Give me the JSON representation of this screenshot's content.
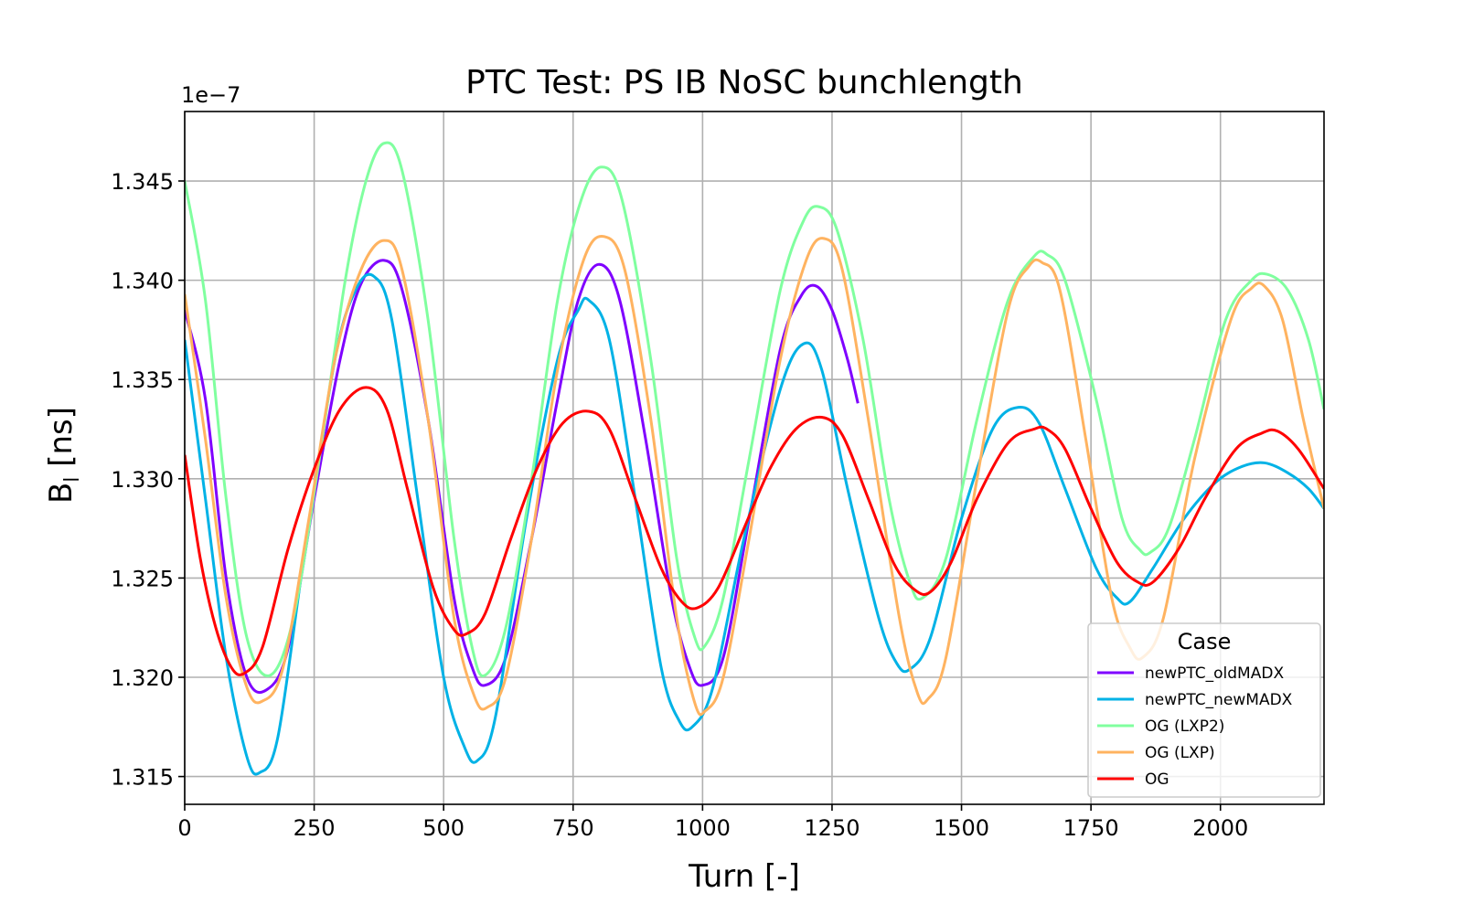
{
  "chart_data": {
    "type": "line",
    "title": "PTC Test: PS IB NoSC bunchlength",
    "xlabel": "Turn [-]",
    "ylabel": "B",
    "ylabel_subscript": "l",
    "ylabel_unit": " [ns]",
    "y_offset_text": "1e−7",
    "xlim": [
      0,
      2200
    ],
    "ylim": [
      1.3136,
      1.3485
    ],
    "x_ticks": [
      0,
      250,
      500,
      750,
      1000,
      1250,
      1500,
      1750,
      2000
    ],
    "x_tick_labels": [
      "0",
      "250",
      "500",
      "750",
      "1000",
      "1250",
      "1500",
      "1750",
      "2000"
    ],
    "y_ticks": [
      1.315,
      1.32,
      1.325,
      1.33,
      1.335,
      1.34,
      1.345
    ],
    "y_tick_labels": [
      "1.315",
      "1.320",
      "1.325",
      "1.330",
      "1.335",
      "1.340",
      "1.345"
    ],
    "grid": true,
    "legend": {
      "title": "Case",
      "placement": "lower-right"
    },
    "series": [
      {
        "name": "newPTC_oldMADX",
        "color": "#7f00ff",
        "points": [
          [
            0,
            1.3385
          ],
          [
            40,
            1.334
          ],
          [
            80,
            1.325
          ],
          [
            120,
            1.32
          ],
          [
            160,
            1.3194
          ],
          [
            200,
            1.3215
          ],
          [
            250,
            1.329
          ],
          [
            300,
            1.336
          ],
          [
            340,
            1.3398
          ],
          [
            385,
            1.341
          ],
          [
            420,
            1.3395
          ],
          [
            470,
            1.333
          ],
          [
            520,
            1.324
          ],
          [
            555,
            1.3205
          ],
          [
            580,
            1.3196
          ],
          [
            620,
            1.321
          ],
          [
            670,
            1.327
          ],
          [
            720,
            1.334
          ],
          [
            760,
            1.339
          ],
          [
            800,
            1.3408
          ],
          [
            840,
            1.339
          ],
          [
            890,
            1.332
          ],
          [
            940,
            1.324
          ],
          [
            975,
            1.3205
          ],
          [
            1000,
            1.3196
          ],
          [
            1040,
            1.321
          ],
          [
            1090,
            1.328
          ],
          [
            1150,
            1.3365
          ],
          [
            1190,
            1.3392
          ],
          [
            1220,
            1.3397
          ],
          [
            1250,
            1.3385
          ],
          [
            1280,
            1.336
          ],
          [
            1300,
            1.3338
          ]
        ]
      },
      {
        "name": "newPTC_newMADX",
        "color": "#00b2e6",
        "points": [
          [
            0,
            1.337
          ],
          [
            40,
            1.329
          ],
          [
            80,
            1.321
          ],
          [
            120,
            1.316
          ],
          [
            145,
            1.3152
          ],
          [
            180,
            1.317
          ],
          [
            230,
            1.326
          ],
          [
            290,
            1.336
          ],
          [
            330,
            1.3395
          ],
          [
            365,
            1.3402
          ],
          [
            400,
            1.338
          ],
          [
            450,
            1.329
          ],
          [
            500,
            1.32
          ],
          [
            540,
            1.3165
          ],
          [
            565,
            1.3158
          ],
          [
            600,
            1.318
          ],
          [
            660,
            1.328
          ],
          [
            720,
            1.336
          ],
          [
            760,
            1.3385
          ],
          [
            780,
            1.339
          ],
          [
            820,
            1.337
          ],
          [
            870,
            1.329
          ],
          [
            920,
            1.3205
          ],
          [
            955,
            1.3178
          ],
          [
            980,
            1.3175
          ],
          [
            1020,
            1.3195
          ],
          [
            1080,
            1.327
          ],
          [
            1150,
            1.3345
          ],
          [
            1195,
            1.3368
          ],
          [
            1230,
            1.3355
          ],
          [
            1280,
            1.3295
          ],
          [
            1340,
            1.323
          ],
          [
            1375,
            1.3207
          ],
          [
            1400,
            1.3204
          ],
          [
            1440,
            1.322
          ],
          [
            1500,
            1.328
          ],
          [
            1560,
            1.3325
          ],
          [
            1610,
            1.3336
          ],
          [
            1650,
            1.3328
          ],
          [
            1700,
            1.3295
          ],
          [
            1760,
            1.3255
          ],
          [
            1800,
            1.324
          ],
          [
            1825,
            1.3238
          ],
          [
            1870,
            1.3255
          ],
          [
            1930,
            1.328
          ],
          [
            1990,
            1.3298
          ],
          [
            2040,
            1.3306
          ],
          [
            2085,
            1.3308
          ],
          [
            2130,
            1.3303
          ],
          [
            2170,
            1.3295
          ],
          [
            2200,
            1.3285
          ]
        ]
      },
      {
        "name": "OG (LXP2)",
        "color": "#80ff9f",
        "points": [
          [
            0,
            1.345
          ],
          [
            40,
            1.339
          ],
          [
            80,
            1.329
          ],
          [
            120,
            1.322
          ],
          [
            165,
            1.3201
          ],
          [
            210,
            1.323
          ],
          [
            260,
            1.331
          ],
          [
            310,
            1.34
          ],
          [
            350,
            1.345
          ],
          [
            385,
            1.3469
          ],
          [
            420,
            1.3455
          ],
          [
            470,
            1.338
          ],
          [
            520,
            1.327
          ],
          [
            555,
            1.3215
          ],
          [
            580,
            1.3201
          ],
          [
            620,
            1.3225
          ],
          [
            670,
            1.33
          ],
          [
            720,
            1.339
          ],
          [
            765,
            1.344
          ],
          [
            805,
            1.3457
          ],
          [
            845,
            1.344
          ],
          [
            900,
            1.336
          ],
          [
            950,
            1.326
          ],
          [
            985,
            1.322
          ],
          [
            1005,
            1.3216
          ],
          [
            1040,
            1.324
          ],
          [
            1090,
            1.331
          ],
          [
            1150,
            1.3395
          ],
          [
            1195,
            1.343
          ],
          [
            1225,
            1.3437
          ],
          [
            1260,
            1.3425
          ],
          [
            1310,
            1.337
          ],
          [
            1360,
            1.329
          ],
          [
            1400,
            1.3248
          ],
          [
            1425,
            1.324
          ],
          [
            1470,
            1.326
          ],
          [
            1530,
            1.333
          ],
          [
            1590,
            1.339
          ],
          [
            1640,
            1.3412
          ],
          [
            1665,
            1.3413
          ],
          [
            1700,
            1.34
          ],
          [
            1760,
            1.334
          ],
          [
            1810,
            1.328
          ],
          [
            1845,
            1.3264
          ],
          [
            1865,
            1.3263
          ],
          [
            1900,
            1.3275
          ],
          [
            1950,
            1.332
          ],
          [
            2010,
            1.338
          ],
          [
            2060,
            1.34
          ],
          [
            2090,
            1.3403
          ],
          [
            2130,
            1.3395
          ],
          [
            2170,
            1.337
          ],
          [
            2200,
            1.3335
          ]
        ]
      },
      {
        "name": "OG (LXP)",
        "color": "#ffb360",
        "points": [
          [
            0,
            1.3393
          ],
          [
            40,
            1.332
          ],
          [
            80,
            1.324
          ],
          [
            120,
            1.3195
          ],
          [
            150,
            1.3188
          ],
          [
            190,
            1.3205
          ],
          [
            240,
            1.328
          ],
          [
            290,
            1.336
          ],
          [
            340,
            1.3405
          ],
          [
            385,
            1.342
          ],
          [
            420,
            1.3405
          ],
          [
            470,
            1.333
          ],
          [
            520,
            1.323
          ],
          [
            560,
            1.319
          ],
          [
            585,
            1.3185
          ],
          [
            620,
            1.32
          ],
          [
            670,
            1.327
          ],
          [
            720,
            1.3355
          ],
          [
            770,
            1.341
          ],
          [
            810,
            1.3422
          ],
          [
            850,
            1.3405
          ],
          [
            900,
            1.333
          ],
          [
            950,
            1.323
          ],
          [
            985,
            1.3187
          ],
          [
            1005,
            1.3183
          ],
          [
            1040,
            1.32
          ],
          [
            1090,
            1.327
          ],
          [
            1150,
            1.336
          ],
          [
            1200,
            1.341
          ],
          [
            1235,
            1.3421
          ],
          [
            1270,
            1.3405
          ],
          [
            1320,
            1.333
          ],
          [
            1380,
            1.323
          ],
          [
            1415,
            1.3192
          ],
          [
            1435,
            1.3189
          ],
          [
            1470,
            1.321
          ],
          [
            1530,
            1.33
          ],
          [
            1590,
            1.3385
          ],
          [
            1630,
            1.3407
          ],
          [
            1655,
            1.3409
          ],
          [
            1690,
            1.3395
          ],
          [
            1740,
            1.332
          ],
          [
            1790,
            1.324
          ],
          [
            1825,
            1.3215
          ],
          [
            1850,
            1.321
          ],
          [
            1890,
            1.323
          ],
          [
            1950,
            1.331
          ],
          [
            2020,
            1.338
          ],
          [
            2060,
            1.3396
          ],
          [
            2085,
            1.3397
          ],
          [
            2120,
            1.338
          ],
          [
            2160,
            1.333
          ],
          [
            2200,
            1.3285
          ]
        ]
      },
      {
        "name": "OG",
        "color": "#ff0000",
        "points": [
          [
            0,
            1.3312
          ],
          [
            30,
            1.326
          ],
          [
            60,
            1.3225
          ],
          [
            90,
            1.3205
          ],
          [
            115,
            1.3202
          ],
          [
            150,
            1.3215
          ],
          [
            200,
            1.3265
          ],
          [
            250,
            1.3305
          ],
          [
            300,
            1.3335
          ],
          [
            350,
            1.3346
          ],
          [
            390,
            1.3335
          ],
          [
            430,
            1.3295
          ],
          [
            480,
            1.3245
          ],
          [
            520,
            1.3224
          ],
          [
            545,
            1.3222
          ],
          [
            580,
            1.3232
          ],
          [
            630,
            1.327
          ],
          [
            680,
            1.3305
          ],
          [
            730,
            1.3328
          ],
          [
            780,
            1.3334
          ],
          [
            820,
            1.3325
          ],
          [
            870,
            1.329
          ],
          [
            920,
            1.3255
          ],
          [
            960,
            1.3238
          ],
          [
            990,
            1.3235
          ],
          [
            1030,
            1.3245
          ],
          [
            1080,
            1.3275
          ],
          [
            1130,
            1.3305
          ],
          [
            1180,
            1.3325
          ],
          [
            1230,
            1.3331
          ],
          [
            1270,
            1.3322
          ],
          [
            1320,
            1.329
          ],
          [
            1370,
            1.3257
          ],
          [
            1410,
            1.3244
          ],
          [
            1440,
            1.3243
          ],
          [
            1480,
            1.3258
          ],
          [
            1530,
            1.329
          ],
          [
            1590,
            1.3318
          ],
          [
            1640,
            1.3325
          ],
          [
            1665,
            1.3325
          ],
          [
            1700,
            1.3315
          ],
          [
            1750,
            1.3285
          ],
          [
            1800,
            1.3258
          ],
          [
            1840,
            1.3248
          ],
          [
            1870,
            1.3248
          ],
          [
            1920,
            1.3265
          ],
          [
            1970,
            1.329
          ],
          [
            2030,
            1.3315
          ],
          [
            2080,
            1.3323
          ],
          [
            2110,
            1.3324
          ],
          [
            2150,
            1.3315
          ],
          [
            2200,
            1.3295
          ]
        ]
      }
    ]
  }
}
